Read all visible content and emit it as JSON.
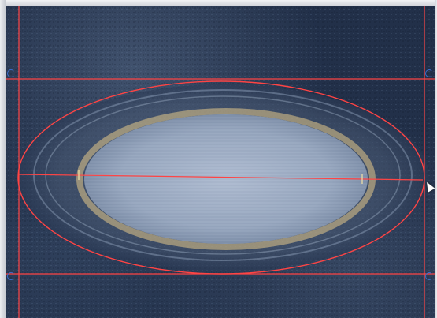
{
  "canvas": {
    "background_color": "#223049",
    "overlay_color": "#ff4444",
    "halo_color": "#e3c98a"
  },
  "handles": [
    {
      "name": "handle-top-left",
      "icon": "circular-arrow-icon"
    },
    {
      "name": "handle-top-right",
      "icon": "circular-arrow-icon"
    },
    {
      "name": "handle-bottom-left",
      "icon": "circular-arrow-icon"
    },
    {
      "name": "handle-bottom-right",
      "icon": "circular-arrow-icon"
    }
  ],
  "cursor": {
    "icon": "mouse-pointer-icon"
  }
}
